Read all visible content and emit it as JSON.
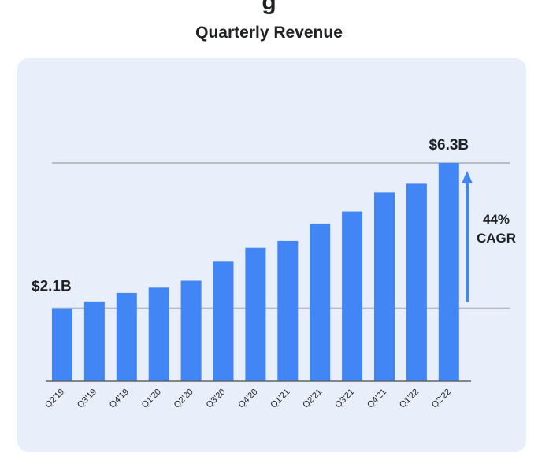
{
  "header": {
    "top_fragment": "g"
  },
  "chart_data": {
    "type": "bar",
    "title": "Quarterly Revenue",
    "categories": [
      "Q2'19",
      "Q3'19",
      "Q4'19",
      "Q1'20",
      "Q2'20",
      "Q3'20",
      "Q4'20",
      "Q1'21",
      "Q2'21",
      "Q3'21",
      "Q4'21",
      "Q1'22",
      "Q2'22"
    ],
    "values": [
      2.1,
      2.3,
      2.55,
      2.7,
      2.9,
      3.45,
      3.85,
      4.05,
      4.55,
      4.9,
      5.45,
      5.7,
      6.3
    ],
    "unit": "$B",
    "ylim": [
      0,
      6.3
    ],
    "annotations": {
      "first_value_label": "$2.1B",
      "last_value_label": "$6.3B",
      "growth_label_line1": "44%",
      "growth_label_line2": "CAGR"
    },
    "reference_lines": [
      2.1,
      6.3
    ],
    "bar_color": "#4285f4",
    "background_color": "#e8eefa"
  }
}
